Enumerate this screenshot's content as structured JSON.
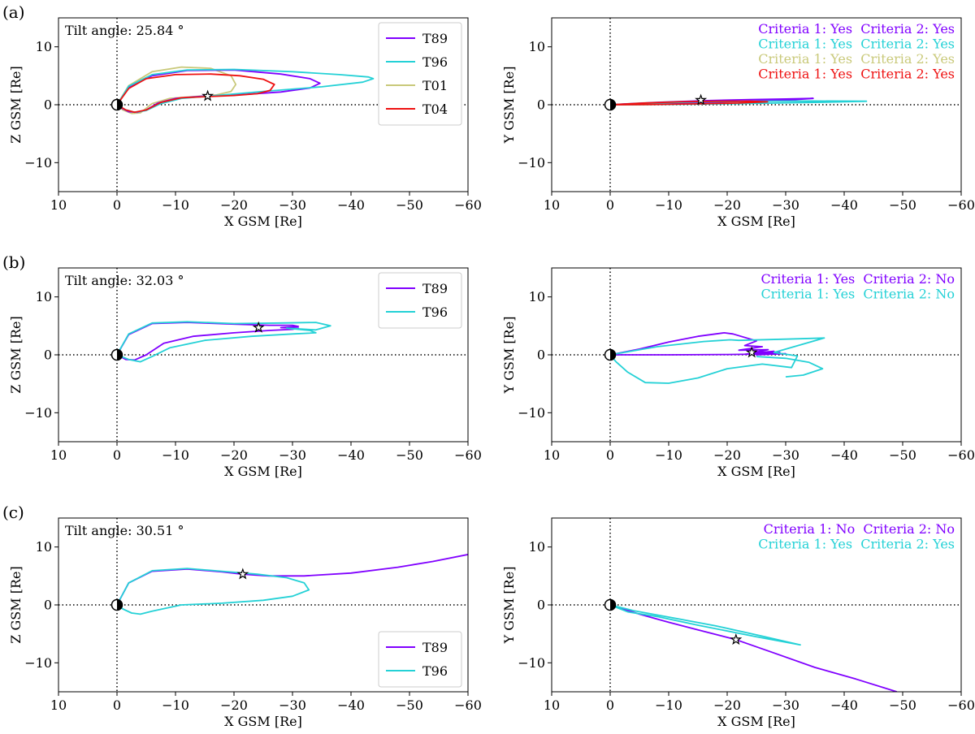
{
  "figure": {
    "panel_labels": [
      "(a)",
      "(b)",
      "(c)"
    ]
  },
  "colors": {
    "T89": "#8000ff",
    "T96": "#24d1d6",
    "T01": "#c9c97a",
    "T04": "#ee1111",
    "axis": "#000000"
  },
  "chart_data": [
    {
      "id": "a-xz",
      "row": 0,
      "col": 0,
      "type": "line",
      "xlabel": "X GSM [Re]",
      "ylabel": "Z GSM [Re]",
      "xlim": [
        10,
        -60
      ],
      "ylim": [
        -15,
        15
      ],
      "xticks": [
        10,
        0,
        -10,
        -20,
        -30,
        -40,
        -50,
        -60
      ],
      "yticks": [
        -10,
        0,
        10
      ],
      "annotation": "Tilt angle: 25.84 °",
      "legend": {
        "position": "upper-right",
        "entries": [
          "T89",
          "T96",
          "T01",
          "T04"
        ]
      },
      "star": {
        "x": -15.5,
        "y": 1.5
      },
      "series": [
        {
          "name": "T01",
          "x": [
            0,
            -2,
            -6,
            -11,
            -16,
            -19.5,
            -20.3,
            -19.5,
            -17,
            -13,
            -9,
            -6,
            -4,
            -2.5,
            -1,
            0
          ],
          "y": [
            0,
            3.3,
            5.7,
            6.5,
            6.3,
            5,
            3.5,
            2.3,
            1.7,
            1.4,
            1.1,
            0.2,
            -1.4,
            -1.5,
            -0.9,
            0
          ]
        },
        {
          "name": "T89",
          "x": [
            0,
            -2,
            -6,
            -12,
            -20,
            -28,
            -33,
            -34.7,
            -33,
            -28,
            -22,
            -15,
            -10,
            -7,
            -5,
            -3.5,
            -2,
            -1,
            0
          ],
          "y": [
            0,
            3,
            5,
            5.9,
            6,
            5.3,
            4.5,
            3.7,
            2.9,
            2.2,
            1.8,
            1.5,
            1.1,
            0.3,
            -0.9,
            -1.3,
            -1.2,
            -0.7,
            0
          ]
        },
        {
          "name": "T96",
          "x": [
            0,
            -2,
            -6,
            -12,
            -20,
            -30,
            -38,
            -43,
            -43.8,
            -42,
            -35,
            -25,
            -17,
            -11,
            -7.5,
            -5,
            -3,
            -1.5,
            0
          ],
          "y": [
            0,
            3.2,
            5.2,
            6,
            6.1,
            5.7,
            5.2,
            4.8,
            4.5,
            3.9,
            3.1,
            2.3,
            1.6,
            1.1,
            0.2,
            -1,
            -1.3,
            -0.9,
            0
          ]
        },
        {
          "name": "T04",
          "x": [
            0,
            -2,
            -5,
            -10,
            -16,
            -21,
            -25,
            -26.9,
            -26.2,
            -24,
            -20,
            -15.5,
            -11,
            -7.5,
            -5,
            -3,
            -1.5,
            0
          ],
          "y": [
            0,
            2.8,
            4.5,
            5.2,
            5.3,
            5,
            4.4,
            3.5,
            2.5,
            1.9,
            1.6,
            1.4,
            1.2,
            0.4,
            -0.9,
            -1.3,
            -0.9,
            0
          ]
        }
      ]
    },
    {
      "id": "a-xy",
      "row": 0,
      "col": 1,
      "type": "line",
      "xlabel": "X GSM [Re]",
      "ylabel": "Y GSM [Re]",
      "xlim": [
        10,
        -60
      ],
      "ylim": [
        -15,
        15
      ],
      "xticks": [
        10,
        0,
        -10,
        -20,
        -30,
        -40,
        -50,
        -60
      ],
      "yticks": [
        -10,
        0,
        10
      ],
      "criteria_texts": [
        {
          "model": "T89",
          "text": "Criteria 1: Yes  Criteria 2: Yes"
        },
        {
          "model": "T96",
          "text": "Criteria 1: Yes  Criteria 2: Yes"
        },
        {
          "model": "T01",
          "text": "Criteria 1: Yes  Criteria 2: Yes"
        },
        {
          "model": "T04",
          "text": "Criteria 1: Yes  Criteria 2: Yes"
        }
      ],
      "star": {
        "x": -15.5,
        "y": 0.8
      },
      "series": [
        {
          "name": "T01",
          "x": [
            0,
            -5,
            -10,
            -15,
            -20.3,
            -15,
            -10,
            -5,
            0
          ],
          "y": [
            0,
            0.3,
            0.5,
            0.6,
            0.5,
            0.2,
            0.1,
            0,
            0
          ]
        },
        {
          "name": "T89",
          "x": [
            0,
            -8,
            -16,
            -24,
            -30,
            -34.7,
            -30,
            -20,
            -10,
            0
          ],
          "y": [
            0,
            0.4,
            0.7,
            0.9,
            1.0,
            1.1,
            0.8,
            0.5,
            0.2,
            0
          ]
        },
        {
          "name": "T96",
          "x": [
            0,
            -8,
            -16,
            -25,
            -35,
            -43.8,
            -35,
            -22,
            -10,
            0
          ],
          "y": [
            0,
            0.3,
            0.5,
            0.6,
            0.65,
            0.6,
            0.4,
            0.2,
            0.05,
            0
          ]
        },
        {
          "name": "T04",
          "x": [
            0,
            -6,
            -12,
            -18,
            -24,
            -26.9,
            -22,
            -15,
            -8,
            0
          ],
          "y": [
            0,
            0.3,
            0.5,
            0.6,
            0.6,
            0.5,
            0.3,
            0.15,
            0.05,
            0
          ]
        }
      ]
    },
    {
      "id": "b-xz",
      "row": 1,
      "col": 0,
      "type": "line",
      "xlabel": "X GSM [Re]",
      "ylabel": "Z GSM [Re]",
      "xlim": [
        10,
        -60
      ],
      "ylim": [
        -15,
        15
      ],
      "xticks": [
        10,
        0,
        -10,
        -20,
        -30,
        -40,
        -50,
        -60
      ],
      "yticks": [
        -10,
        0,
        10
      ],
      "annotation": "Tilt angle: 32.03 °",
      "legend": {
        "position": "upper-right",
        "entries": [
          "T89",
          "T96"
        ]
      },
      "star": {
        "x": -24.2,
        "y": 4.7
      },
      "series": [
        {
          "name": "T89",
          "x": [
            0,
            -2,
            -6,
            -12,
            -20,
            -26,
            -30,
            -31,
            -28,
            -31,
            -30,
            -26,
            -20,
            -13,
            -8,
            -5,
            -3,
            -1.5,
            0
          ],
          "y": [
            0,
            3.5,
            5.4,
            5.6,
            5.3,
            5.1,
            5.1,
            4.9,
            4.7,
            4.6,
            4.4,
            4.2,
            3.8,
            3.2,
            2,
            0,
            -0.9,
            -0.8,
            0
          ]
        },
        {
          "name": "T96",
          "x": [
            0,
            -2,
            -6,
            -12,
            -20,
            -28,
            -34,
            -36.5,
            -34,
            -29,
            -33,
            -34,
            -30,
            -23,
            -15,
            -9,
            -6,
            -4,
            -2,
            0
          ],
          "y": [
            0,
            3.6,
            5.5,
            5.7,
            5.4,
            5.5,
            5.6,
            5,
            4.3,
            4.6,
            4.2,
            3.8,
            3.6,
            3.2,
            2.5,
            1.2,
            -0.3,
            -1.2,
            -0.8,
            0
          ]
        }
      ]
    },
    {
      "id": "b-xy",
      "row": 1,
      "col": 1,
      "type": "line",
      "xlabel": "X GSM [Re]",
      "ylabel": "Y GSM [Re]",
      "xlim": [
        10,
        -60
      ],
      "ylim": [
        -15,
        15
      ],
      "xticks": [
        10,
        0,
        -10,
        -20,
        -30,
        -40,
        -50,
        -60
      ],
      "yticks": [
        -10,
        0,
        10
      ],
      "criteria_texts": [
        {
          "model": "T89",
          "text": "Criteria 1: Yes  Criteria 2: No"
        },
        {
          "model": "T96",
          "text": "Criteria 1: Yes  Criteria 2: No"
        }
      ],
      "star": {
        "x": -24.2,
        "y": 0.4
      },
      "series": [
        {
          "name": "T89",
          "x": [
            0,
            -5,
            -10,
            -15,
            -19.5,
            -21,
            -25,
            -23,
            -26,
            -22,
            -27,
            -24,
            -28,
            -23,
            -29,
            -25,
            -30,
            -20,
            -10,
            0
          ],
          "y": [
            0,
            1,
            2.2,
            3.2,
            3.8,
            3.6,
            2.4,
            1.6,
            1.4,
            0.8,
            0.9,
            0.3,
            0.6,
            0.1,
            0.4,
            0.0,
            0.2,
            0.05,
            0,
            0
          ]
        },
        {
          "name": "T96",
          "x": [
            0,
            -8,
            -16,
            -20.5,
            -22,
            -30,
            -36.6,
            -28,
            -32,
            -31,
            -26,
            -20,
            -15,
            -10,
            -6,
            -3,
            -1,
            0
          ],
          "y": [
            0,
            1.4,
            2.3,
            2.6,
            2.5,
            2.7,
            2.9,
            0.4,
            -0.2,
            -2.2,
            -1.6,
            -2.4,
            -4,
            -4.9,
            -4.8,
            -3,
            -1.2,
            0
          ]
        },
        {
          "name": "T96",
          "x": [
            -25,
            -30,
            -34,
            -36.3,
            -33,
            -30
          ],
          "y": [
            -0.3,
            -0.6,
            -1.3,
            -2.4,
            -3.5,
            -3.8
          ]
        }
      ]
    },
    {
      "id": "c-xz",
      "row": 2,
      "col": 0,
      "type": "line",
      "xlabel": "X GSM [Re]",
      "ylabel": "Z GSM [Re]",
      "xlim": [
        10,
        -60
      ],
      "ylim": [
        -15,
        15
      ],
      "xticks": [
        10,
        0,
        -10,
        -20,
        -30,
        -40,
        -50,
        -60
      ],
      "yticks": [
        -10,
        0,
        10
      ],
      "annotation": "Tilt angle: 30.51 °",
      "legend": {
        "position": "lower-right",
        "entries": [
          "T89",
          "T96"
        ]
      },
      "star": {
        "x": -21.5,
        "y": 5.3
      },
      "series": [
        {
          "name": "T89",
          "x": [
            0,
            -2,
            -6,
            -12,
            -18,
            -21.5,
            -26,
            -32,
            -40,
            -48,
            -54,
            -60
          ],
          "y": [
            0,
            3.8,
            5.8,
            6.2,
            5.7,
            5.3,
            5,
            5,
            5.5,
            6.5,
            7.5,
            8.7
          ]
        },
        {
          "name": "T96",
          "x": [
            0,
            -2,
            -6,
            -12,
            -18,
            -24,
            -29,
            -32,
            -32.8,
            -30,
            -25,
            -18,
            -11,
            -6,
            -4,
            -2.5,
            -1,
            0
          ],
          "y": [
            0,
            3.8,
            5.9,
            6.3,
            5.8,
            5.3,
            4.7,
            3.8,
            2.6,
            1.5,
            0.8,
            0.3,
            0,
            -1.1,
            -1.6,
            -1.4,
            -0.7,
            0
          ]
        }
      ]
    },
    {
      "id": "c-xy",
      "row": 2,
      "col": 1,
      "type": "line",
      "xlabel": "X GSM [Re]",
      "ylabel": "Y GSM [Re]",
      "xlim": [
        10,
        -60
      ],
      "ylim": [
        -15,
        15
      ],
      "xticks": [
        10,
        0,
        -10,
        -20,
        -30,
        -40,
        -50,
        -60
      ],
      "yticks": [
        -10,
        0,
        10
      ],
      "criteria_texts": [
        {
          "model": "T89",
          "text": "Criteria 1: No  Criteria 2: No"
        },
        {
          "model": "T96",
          "text": "Criteria 1: Yes  Criteria 2: Yes"
        }
      ],
      "star": {
        "x": -21.5,
        "y": -6
      },
      "series": [
        {
          "name": "T89",
          "x": [
            0,
            -5,
            -10,
            -15,
            -21.5,
            -28,
            -35,
            -42,
            -49
          ],
          "y": [
            0,
            -1.6,
            -3,
            -4.3,
            -6,
            -8.3,
            -10.8,
            -12.8,
            -15
          ]
        },
        {
          "name": "T96",
          "x": [
            0,
            -4,
            -10,
            -18,
            -26,
            -32.5,
            -25,
            -15,
            -8,
            -3,
            -1,
            0
          ],
          "y": [
            0,
            -1,
            -2.1,
            -3.6,
            -5.4,
            -6.9,
            -5.5,
            -3.5,
            -2,
            -1.2,
            -0.4,
            0
          ]
        }
      ]
    }
  ]
}
